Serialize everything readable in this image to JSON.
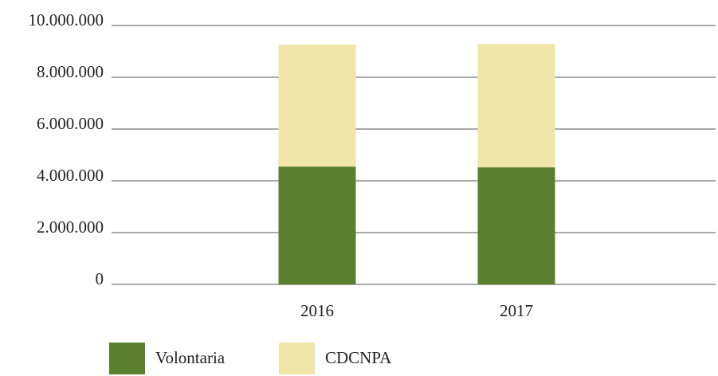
{
  "chart_data": {
    "type": "stacked_bar",
    "categories": [
      "2016",
      "2017"
    ],
    "series": [
      {
        "name": "Volontaria",
        "color": "#5a7f2e",
        "values": [
          4550000,
          4520000
        ]
      },
      {
        "name": "CDCNPA",
        "color": "#efe6a8",
        "values": [
          4710000,
          4770000
        ]
      }
    ],
    "ylim": [
      0,
      10000000
    ],
    "yticks": [
      0,
      {
        "value": 2000000,
        "label": "2.000.000"
      },
      {
        "value": 4000000,
        "label": "4.000.000"
      },
      {
        "value": 6000000,
        "label": "6.000.000"
      },
      {
        "value": 8000000,
        "label": "8.000.000"
      },
      {
        "value": 10000000,
        "label": "10.000.000"
      }
    ],
    "grid": true,
    "legend": "bottom"
  }
}
